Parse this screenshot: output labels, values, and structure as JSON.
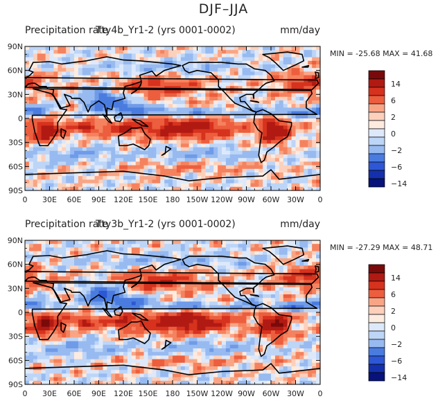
{
  "figure_title": "DJF–JJA",
  "colors": {
    "scale": [
      "#7a0a0a",
      "#b01a12",
      "#d6321e",
      "#ec5e3e",
      "#f5825e",
      "#f9a585",
      "#fdd0bb",
      "#fdebe0",
      "#dde9fb",
      "#bdd5f7",
      "#97baf0",
      "#6f9be8",
      "#4a7ce0",
      "#2d57d4",
      "#1430ac",
      "#07127a"
    ],
    "land_outline": "#000000",
    "frame": "#000000"
  },
  "chart_data": [
    {
      "type": "heatmap",
      "title": "Precipitation rate",
      "subtitle": "Tty4b_Yr1-2 (yrs 0001-0002)",
      "units": "mm/day",
      "stats": "MIN = -25.68  MAX =  41.68",
      "min": -25.68,
      "max": 41.68,
      "x_ticks": [
        "0",
        "30E",
        "60E",
        "90E",
        "120E",
        "150E",
        "180",
        "150W",
        "120W",
        "90W",
        "60W",
        "30W",
        "0"
      ],
      "y_ticks": [
        "90N",
        "60N",
        "30N",
        "0",
        "30S",
        "60S",
        "90S"
      ],
      "xlim": [
        0,
        360
      ],
      "ylim": [
        -90,
        90
      ],
      "colorbar_levels": [
        -14,
        -10,
        -6,
        -4,
        -2,
        -1,
        0,
        1,
        2,
        4,
        6,
        10,
        14
      ],
      "colorbar_labels": [
        "14",
        "6",
        "2",
        "0",
        "−2",
        "−6",
        "−14"
      ]
    },
    {
      "type": "heatmap",
      "title": "Precipitation rate",
      "subtitle": "Tty3b_Yr1-2 (yrs 0001-0002)",
      "units": "mm/day",
      "stats": "MIN = -27.29  MAX =  48.71",
      "min": -27.29,
      "max": 48.71,
      "x_ticks": [
        "0",
        "30E",
        "60E",
        "90E",
        "120E",
        "150E",
        "180",
        "150W",
        "120W",
        "90W",
        "60W",
        "30W",
        "0"
      ],
      "y_ticks": [
        "90N",
        "60N",
        "30N",
        "0",
        "30S",
        "60S",
        "90S"
      ],
      "xlim": [
        0,
        360
      ],
      "ylim": [
        -90,
        90
      ],
      "colorbar_levels": [
        -14,
        -10,
        -6,
        -4,
        -2,
        -1,
        0,
        1,
        2,
        4,
        6,
        10,
        14
      ],
      "colorbar_labels": [
        "14",
        "6",
        "2",
        "0",
        "−2",
        "−6",
        "−14"
      ]
    }
  ]
}
